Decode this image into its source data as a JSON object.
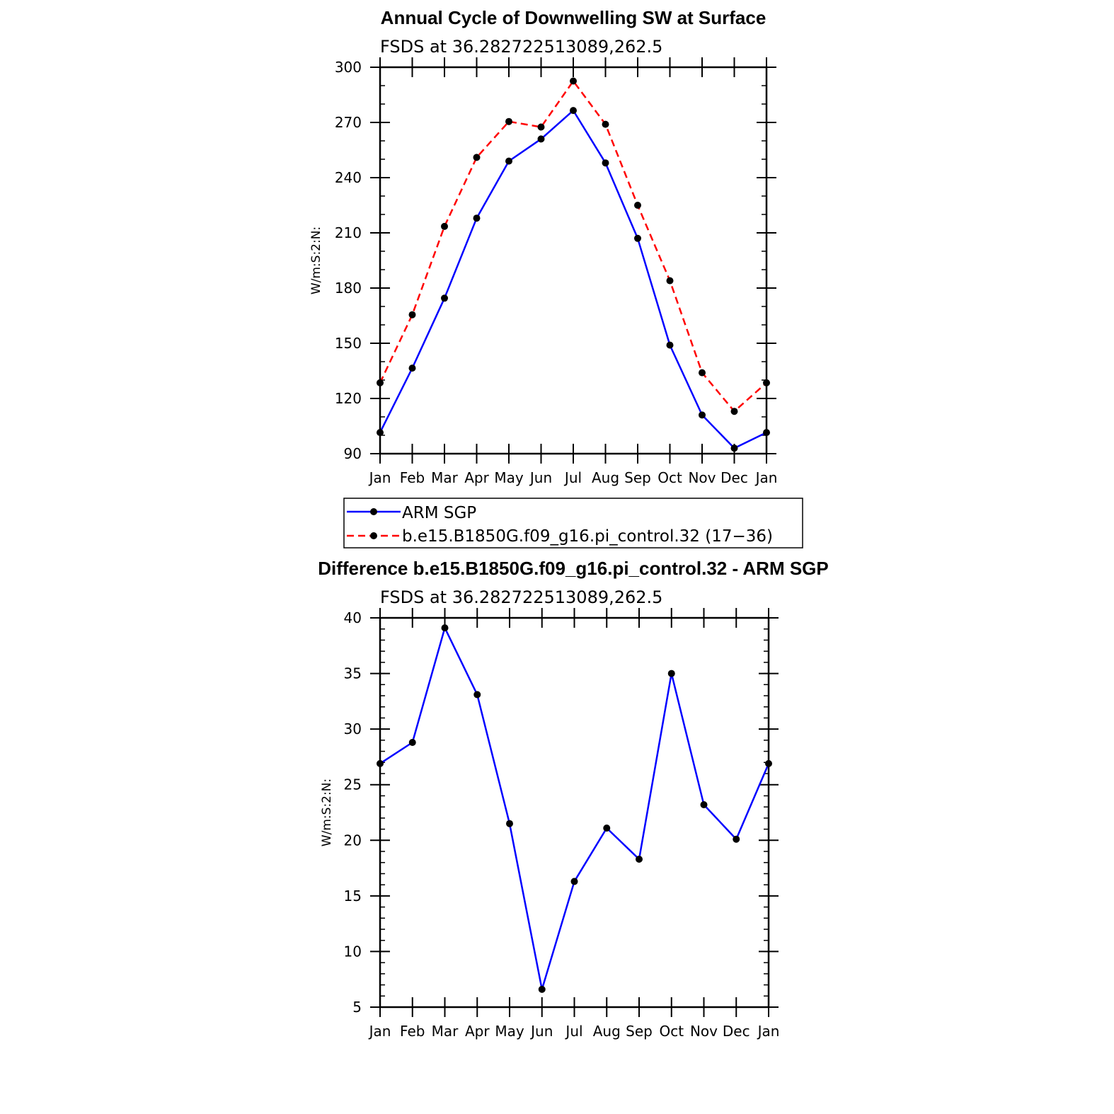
{
  "chart_data": [
    {
      "type": "line",
      "title": "Annual Cycle of Downwelling SW at Surface",
      "subtitle": "FSDS at 36.282722513089,262.5",
      "xlabel": "",
      "ylabel": "W/m:S:2:N:",
      "categories": [
        "Jan",
        "Feb",
        "Mar",
        "Apr",
        "May",
        "Jun",
        "Jul",
        "Aug",
        "Sep",
        "Oct",
        "Nov",
        "Dec",
        "Jan"
      ],
      "ylim": [
        90,
        300
      ],
      "yticks": [
        90,
        120,
        150,
        180,
        210,
        240,
        270,
        300
      ],
      "y_minor_step": 10,
      "grid": false,
      "legend_position": "below",
      "series": [
        {
          "name": "ARM SGP",
          "color": "#0000ff",
          "dash": "solid",
          "values": [
            101.5,
            136.5,
            174.5,
            218,
            249,
            261,
            276.5,
            248,
            207,
            149,
            111,
            93,
            101.5
          ]
        },
        {
          "name": "b.e15.B1850G.f09_g16.pi_control.32 (17−36)",
          "color": "#ff0000",
          "dash": "dashed",
          "values": [
            128.5,
            165.5,
            213.5,
            251,
            270.5,
            267.5,
            292.5,
            269,
            225,
            184,
            134,
            113,
            128.5
          ]
        }
      ]
    },
    {
      "type": "line",
      "title": "Difference b.e15.B1850G.f09_g16.pi_control.32 - ARM SGP",
      "subtitle": "FSDS at 36.282722513089,262.5",
      "xlabel": "",
      "ylabel": "W/m:S:2:N:",
      "categories": [
        "Jan",
        "Feb",
        "Mar",
        "Apr",
        "May",
        "Jun",
        "Jul",
        "Aug",
        "Sep",
        "Oct",
        "Nov",
        "Dec",
        "Jan"
      ],
      "ylim": [
        5,
        40
      ],
      "yticks": [
        5,
        10,
        15,
        20,
        25,
        30,
        35,
        40
      ],
      "y_minor_step": 1,
      "grid": false,
      "series": [
        {
          "name": "",
          "color": "#0000ff",
          "dash": "solid",
          "values": [
            26.9,
            28.8,
            39.1,
            33.1,
            21.5,
            6.6,
            16.3,
            21.1,
            18.3,
            35,
            23.2,
            20.1,
            26.9
          ]
        }
      ]
    }
  ]
}
